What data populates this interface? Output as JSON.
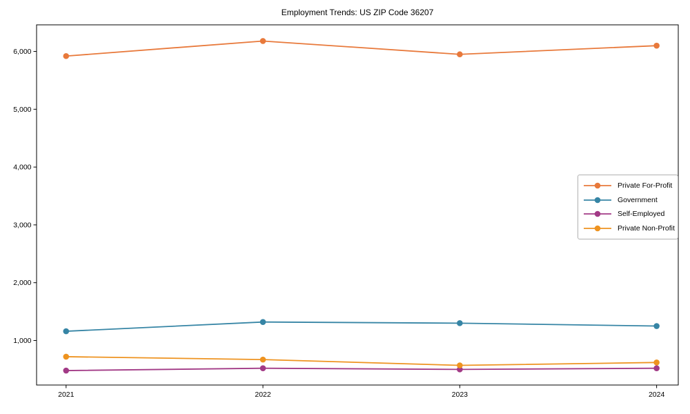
{
  "title": "Employment Trends: US ZIP Code 36207",
  "chart_data": {
    "type": "line",
    "title": "Employment Trends: US ZIP Code 36207",
    "xlabel": "",
    "ylabel": "",
    "categories": [
      2021,
      2022,
      2023,
      2024
    ],
    "series": [
      {
        "name": "Private For-Profit",
        "color": "#e8793b",
        "values": [
          5920,
          6180,
          5950,
          6100
        ]
      },
      {
        "name": "Government",
        "color": "#3685a5",
        "values": [
          1160,
          1320,
          1300,
          1250
        ]
      },
      {
        "name": "Self-Employed",
        "color": "#a23a86",
        "values": [
          480,
          520,
          500,
          520
        ]
      },
      {
        "name": "Private Non-Profit",
        "color": "#ee9320",
        "values": [
          720,
          670,
          570,
          620
        ]
      }
    ],
    "x_ticks": [
      2021,
      2022,
      2023,
      2024
    ],
    "x_tick_labels": [
      "2021",
      "2022",
      "2023",
      "2024"
    ],
    "y_ticks": [
      1000,
      2000,
      3000,
      4000,
      5000,
      6000
    ],
    "y_tick_labels": [
      "1,000",
      "2,000",
      "3,000",
      "4,000",
      "5,000",
      "6,000"
    ],
    "x_range": [
      2020.85,
      2024.11
    ],
    "y_range": [
      230,
      6460
    ],
    "grid": false,
    "legend_position": "center-right",
    "marker": "circle",
    "axis_color": "#000000",
    "tick_label_color": "#000000"
  }
}
